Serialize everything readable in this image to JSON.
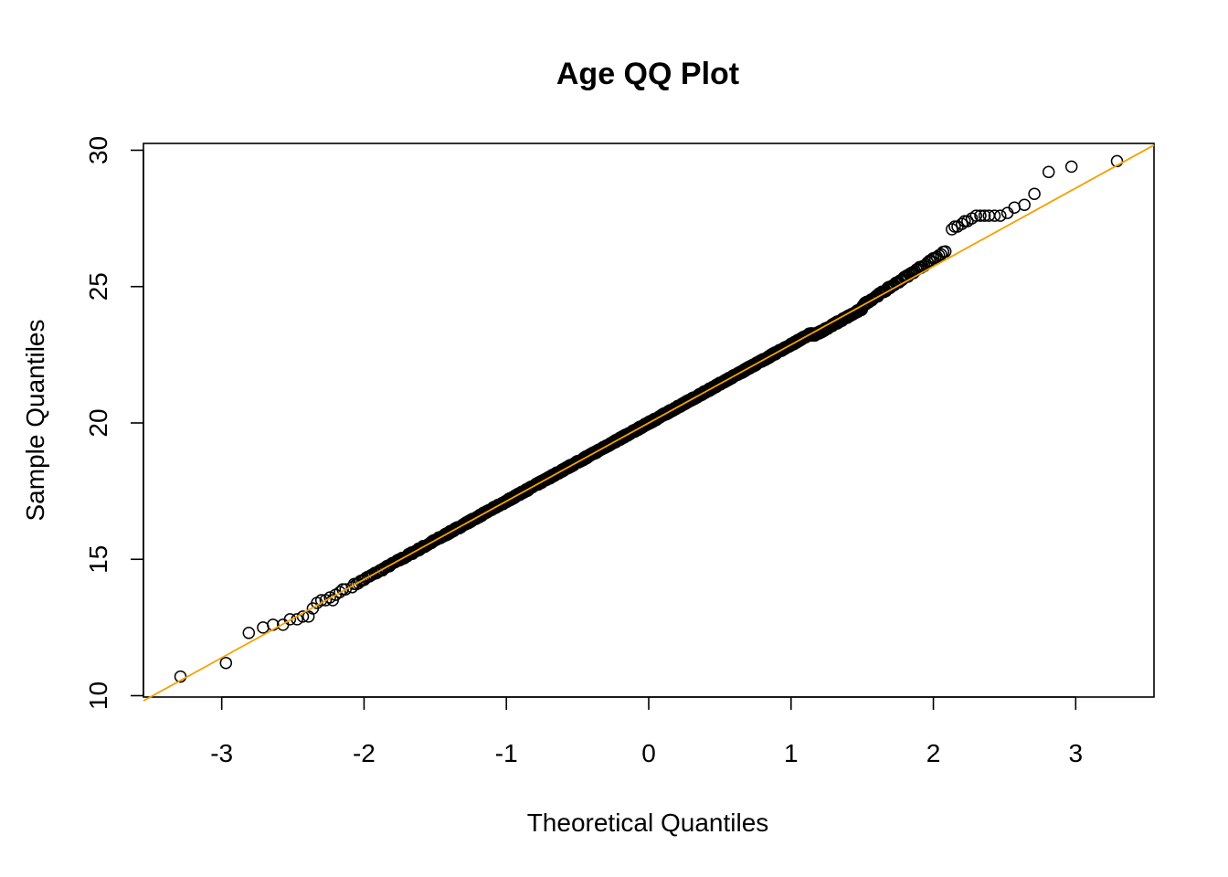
{
  "chart_data": {
    "type": "scatter",
    "title": "Age QQ Plot",
    "xlabel": "Theoretical Quantiles",
    "ylabel": "Sample Quantiles",
    "xlim": [
      -3.55,
      3.55
    ],
    "ylim": [
      9.95,
      30.25
    ],
    "xticks": [
      -3,
      -2,
      -1,
      0,
      1,
      2,
      3
    ],
    "yticks": [
      10,
      15,
      20,
      25,
      30
    ],
    "grid": false,
    "legend": "none",
    "point_color": "#000000",
    "line_color": "#F5A000",
    "reference_line": {
      "intercept": 20.0,
      "slope": 2.87
    },
    "points": [
      [
        -3.29,
        10.7
      ],
      [
        -2.97,
        11.2
      ],
      [
        -2.81,
        12.3
      ],
      [
        -2.71,
        12.5
      ],
      [
        -2.64,
        12.6
      ],
      [
        -2.57,
        12.6
      ],
      [
        -2.52,
        12.8
      ],
      [
        -2.47,
        12.8
      ],
      [
        -2.43,
        12.9
      ],
      [
        -2.39,
        12.9
      ],
      [
        -2.36,
        13.2
      ],
      [
        -2.33,
        13.4
      ],
      [
        -2.3,
        13.5
      ],
      [
        -2.27,
        13.5
      ],
      [
        -2.24,
        13.6
      ],
      [
        -2.22,
        13.5
      ],
      [
        -2.2,
        13.7
      ],
      [
        -2.17,
        13.8
      ],
      [
        -2.15,
        13.9
      ],
      [
        -2.13,
        13.9
      ],
      [
        2.13,
        27.1
      ],
      [
        2.15,
        27.2
      ],
      [
        2.17,
        27.2
      ],
      [
        2.2,
        27.3
      ],
      [
        2.22,
        27.4
      ],
      [
        2.24,
        27.4
      ],
      [
        2.27,
        27.5
      ],
      [
        2.3,
        27.6
      ],
      [
        2.33,
        27.6
      ],
      [
        2.36,
        27.6
      ],
      [
        2.39,
        27.6
      ],
      [
        2.43,
        27.6
      ],
      [
        2.47,
        27.6
      ],
      [
        2.52,
        27.7
      ],
      [
        2.57,
        27.9
      ],
      [
        2.64,
        28.0
      ],
      [
        2.71,
        28.4
      ],
      [
        2.81,
        29.2
      ],
      [
        2.97,
        29.4
      ],
      [
        3.29,
        29.6
      ]
    ]
  }
}
